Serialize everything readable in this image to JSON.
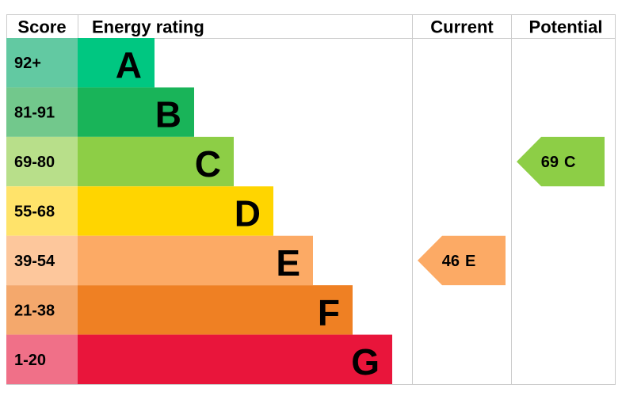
{
  "header": {
    "score": "Score",
    "rating": "Energy rating",
    "current": "Current",
    "potential": "Potential"
  },
  "rows": [
    {
      "score": "92+",
      "letter": "A",
      "color": "#00c781",
      "score_color": "#62c9a2"
    },
    {
      "score": "81-91",
      "letter": "B",
      "color": "#19b459",
      "score_color": "#72c88c"
    },
    {
      "score": "69-80",
      "letter": "C",
      "color": "#8dce46",
      "score_color": "#b8df8a"
    },
    {
      "score": "55-68",
      "letter": "D",
      "color": "#ffd500",
      "score_color": "#ffe36a"
    },
    {
      "score": "39-54",
      "letter": "E",
      "color": "#fcaa65",
      "score_color": "#fdc79c"
    },
    {
      "score": "21-38",
      "letter": "F",
      "color": "#ef8023",
      "score_color": "#f4a86c"
    },
    {
      "score": "1-20",
      "letter": "G",
      "color": "#e9153b",
      "score_color": "#f07088"
    }
  ],
  "current": {
    "score": 46,
    "letter": "E",
    "row": 4
  },
  "potential": {
    "score": 69,
    "letter": "C",
    "row": 2
  }
}
